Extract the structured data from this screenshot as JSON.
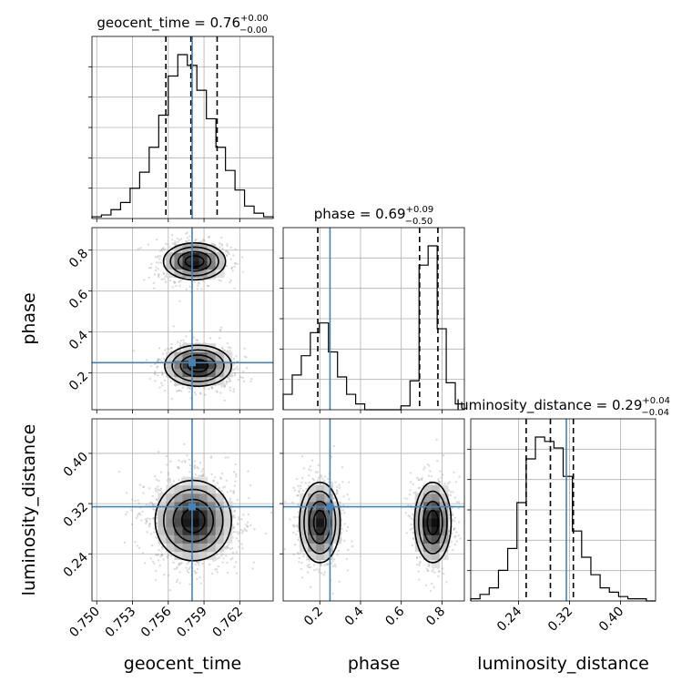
{
  "chart_data": {
    "type": "corner",
    "parameters": [
      "geocent_time",
      "phase",
      "luminosity_distance"
    ],
    "axis_labels": [
      "geocent_time",
      "phase",
      "luminosity_distance"
    ],
    "ranges": {
      "geocent_time": [
        0.7496,
        0.7648
      ],
      "phase": [
        0.02,
        0.91
      ],
      "luminosity_distance": [
        0.165,
        0.455
      ]
    },
    "ticks": {
      "geocent_time": {
        "values": [
          0.75,
          0.753,
          0.756,
          0.759,
          0.762
        ],
        "labels": [
          "0.750",
          "0.753",
          "0.756",
          "0.759",
          "0.762"
        ]
      },
      "phase": {
        "values": [
          0.2,
          0.4,
          0.6,
          0.8
        ],
        "labels": [
          "0.2",
          "0.4",
          "0.6",
          "0.8"
        ]
      },
      "luminosity_distance": {
        "values": [
          0.24,
          0.32,
          0.4
        ],
        "labels": [
          "0.24",
          "0.32",
          "0.40"
        ]
      }
    },
    "truths": {
      "geocent_time": 0.758,
      "phase": 0.25,
      "luminosity_distance": 0.315
    },
    "titles": [
      {
        "label": "geocent_time = 0.76",
        "sup": "+0.00",
        "sub": "−0.00"
      },
      {
        "label": "phase = 0.69",
        "sup": "+0.09",
        "sub": "−0.50"
      },
      {
        "label": "luminosity_distance = 0.29",
        "sup": "+0.04",
        "sub": "−0.04"
      }
    ],
    "quantiles": {
      "geocent_time": [
        0.7558,
        0.7579,
        0.7601
      ],
      "phase": [
        0.19,
        0.69,
        0.78
      ],
      "luminosity_distance": [
        0.252,
        0.29,
        0.326
      ]
    },
    "histograms": {
      "geocent_time": {
        "edges": [
          0.7496,
          0.7504,
          0.7512,
          0.752,
          0.7528,
          0.7536,
          0.7544,
          0.7552,
          0.756,
          0.7568,
          0.7576,
          0.7584,
          0.7592,
          0.76,
          0.7608,
          0.7616,
          0.7624,
          0.7632,
          0.764,
          0.7648
        ],
        "counts": [
          1,
          2,
          5,
          9,
          17,
          26,
          40,
          58,
          80,
          92,
          86,
          72,
          56,
          40,
          27,
          16,
          7,
          3,
          1
        ]
      },
      "phase": {
        "edges": [
          0.02,
          0.0645,
          0.109,
          0.1535,
          0.198,
          0.2425,
          0.287,
          0.3315,
          0.376,
          0.4205,
          0.465,
          0.5095,
          0.554,
          0.5985,
          0.643,
          0.6875,
          0.732,
          0.7765,
          0.821,
          0.8655,
          0.91
        ],
        "counts": [
          8,
          18,
          28,
          40,
          45,
          30,
          17,
          8,
          3,
          0,
          0,
          0,
          0,
          2,
          15,
          75,
          85,
          42,
          14,
          3
        ]
      },
      "luminosity_distance": {
        "edges": [
          0.165,
          0.1795,
          0.194,
          0.2085,
          0.223,
          0.2375,
          0.252,
          0.2665,
          0.281,
          0.2955,
          0.31,
          0.3245,
          0.339,
          0.3535,
          0.368,
          0.3825,
          0.397,
          0.4115,
          0.426,
          0.4405,
          0.455
        ],
        "counts": [
          1,
          3,
          6,
          14,
          24,
          45,
          65,
          75,
          73,
          70,
          57,
          32,
          20,
          12,
          6,
          4,
          2,
          1,
          1,
          0
        ]
      }
    },
    "modes_2d": {
      "phase_vs_geocent_time": [
        {
          "x": 0.7582,
          "y": 0.745,
          "sx": 0.0013,
          "sy": 0.045,
          "w": 0.5
        },
        {
          "x": 0.7585,
          "y": 0.235,
          "sx": 0.0014,
          "sy": 0.05,
          "w": 0.5
        }
      ],
      "luminosity_distance_vs_geocent_time": [
        {
          "x": 0.7581,
          "y": 0.293,
          "sx": 0.0016,
          "sy": 0.032,
          "w": 1.0
        }
      ],
      "luminosity_distance_vs_phase": [
        {
          "x": 0.2,
          "y": 0.29,
          "sx": 0.05,
          "sy": 0.032,
          "w": 0.48
        },
        {
          "x": 0.755,
          "y": 0.29,
          "sx": 0.045,
          "sy": 0.032,
          "w": 0.52
        }
      ]
    },
    "grid": true,
    "truth_color": "#4682b4",
    "contour_color": "#000000"
  }
}
